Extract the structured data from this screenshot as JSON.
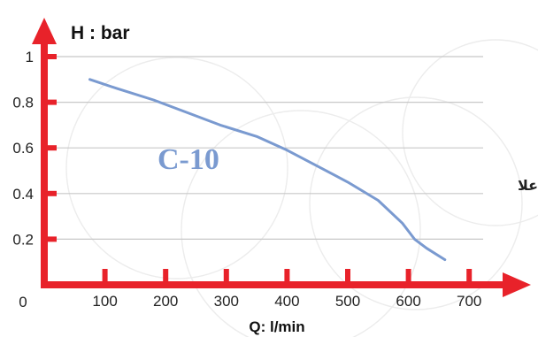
{
  "chart_data": {
    "type": "line",
    "title": "",
    "ylabel": "H : bar",
    "xlabel": "Q: l/min",
    "origin_label": "0",
    "x_ticks": [
      "100",
      "200",
      "300",
      "400",
      "500",
      "600",
      "700"
    ],
    "x_tick_values": [
      100,
      200,
      300,
      400,
      500,
      600,
      700
    ],
    "y_ticks": [
      "0.2",
      "0.4",
      "0.6",
      "0.8",
      "1"
    ],
    "y_tick_values": [
      0.2,
      0.4,
      0.6,
      0.8,
      1
    ],
    "xlim": [
      0,
      750
    ],
    "ylim": [
      0,
      1.1
    ],
    "grid": true,
    "series": [
      {
        "name": "C-10",
        "color": "#7a9ad0",
        "x": [
          75,
          120,
          180,
          230,
          290,
          350,
          400,
          450,
          500,
          550,
          590,
          610,
          630,
          660
        ],
        "y": [
          0.9,
          0.86,
          0.81,
          0.76,
          0.7,
          0.65,
          0.59,
          0.52,
          0.45,
          0.37,
          0.27,
          0.2,
          0.16,
          0.11
        ]
      }
    ],
    "axis_color": "#e8222a"
  },
  "edge_text": "علا"
}
